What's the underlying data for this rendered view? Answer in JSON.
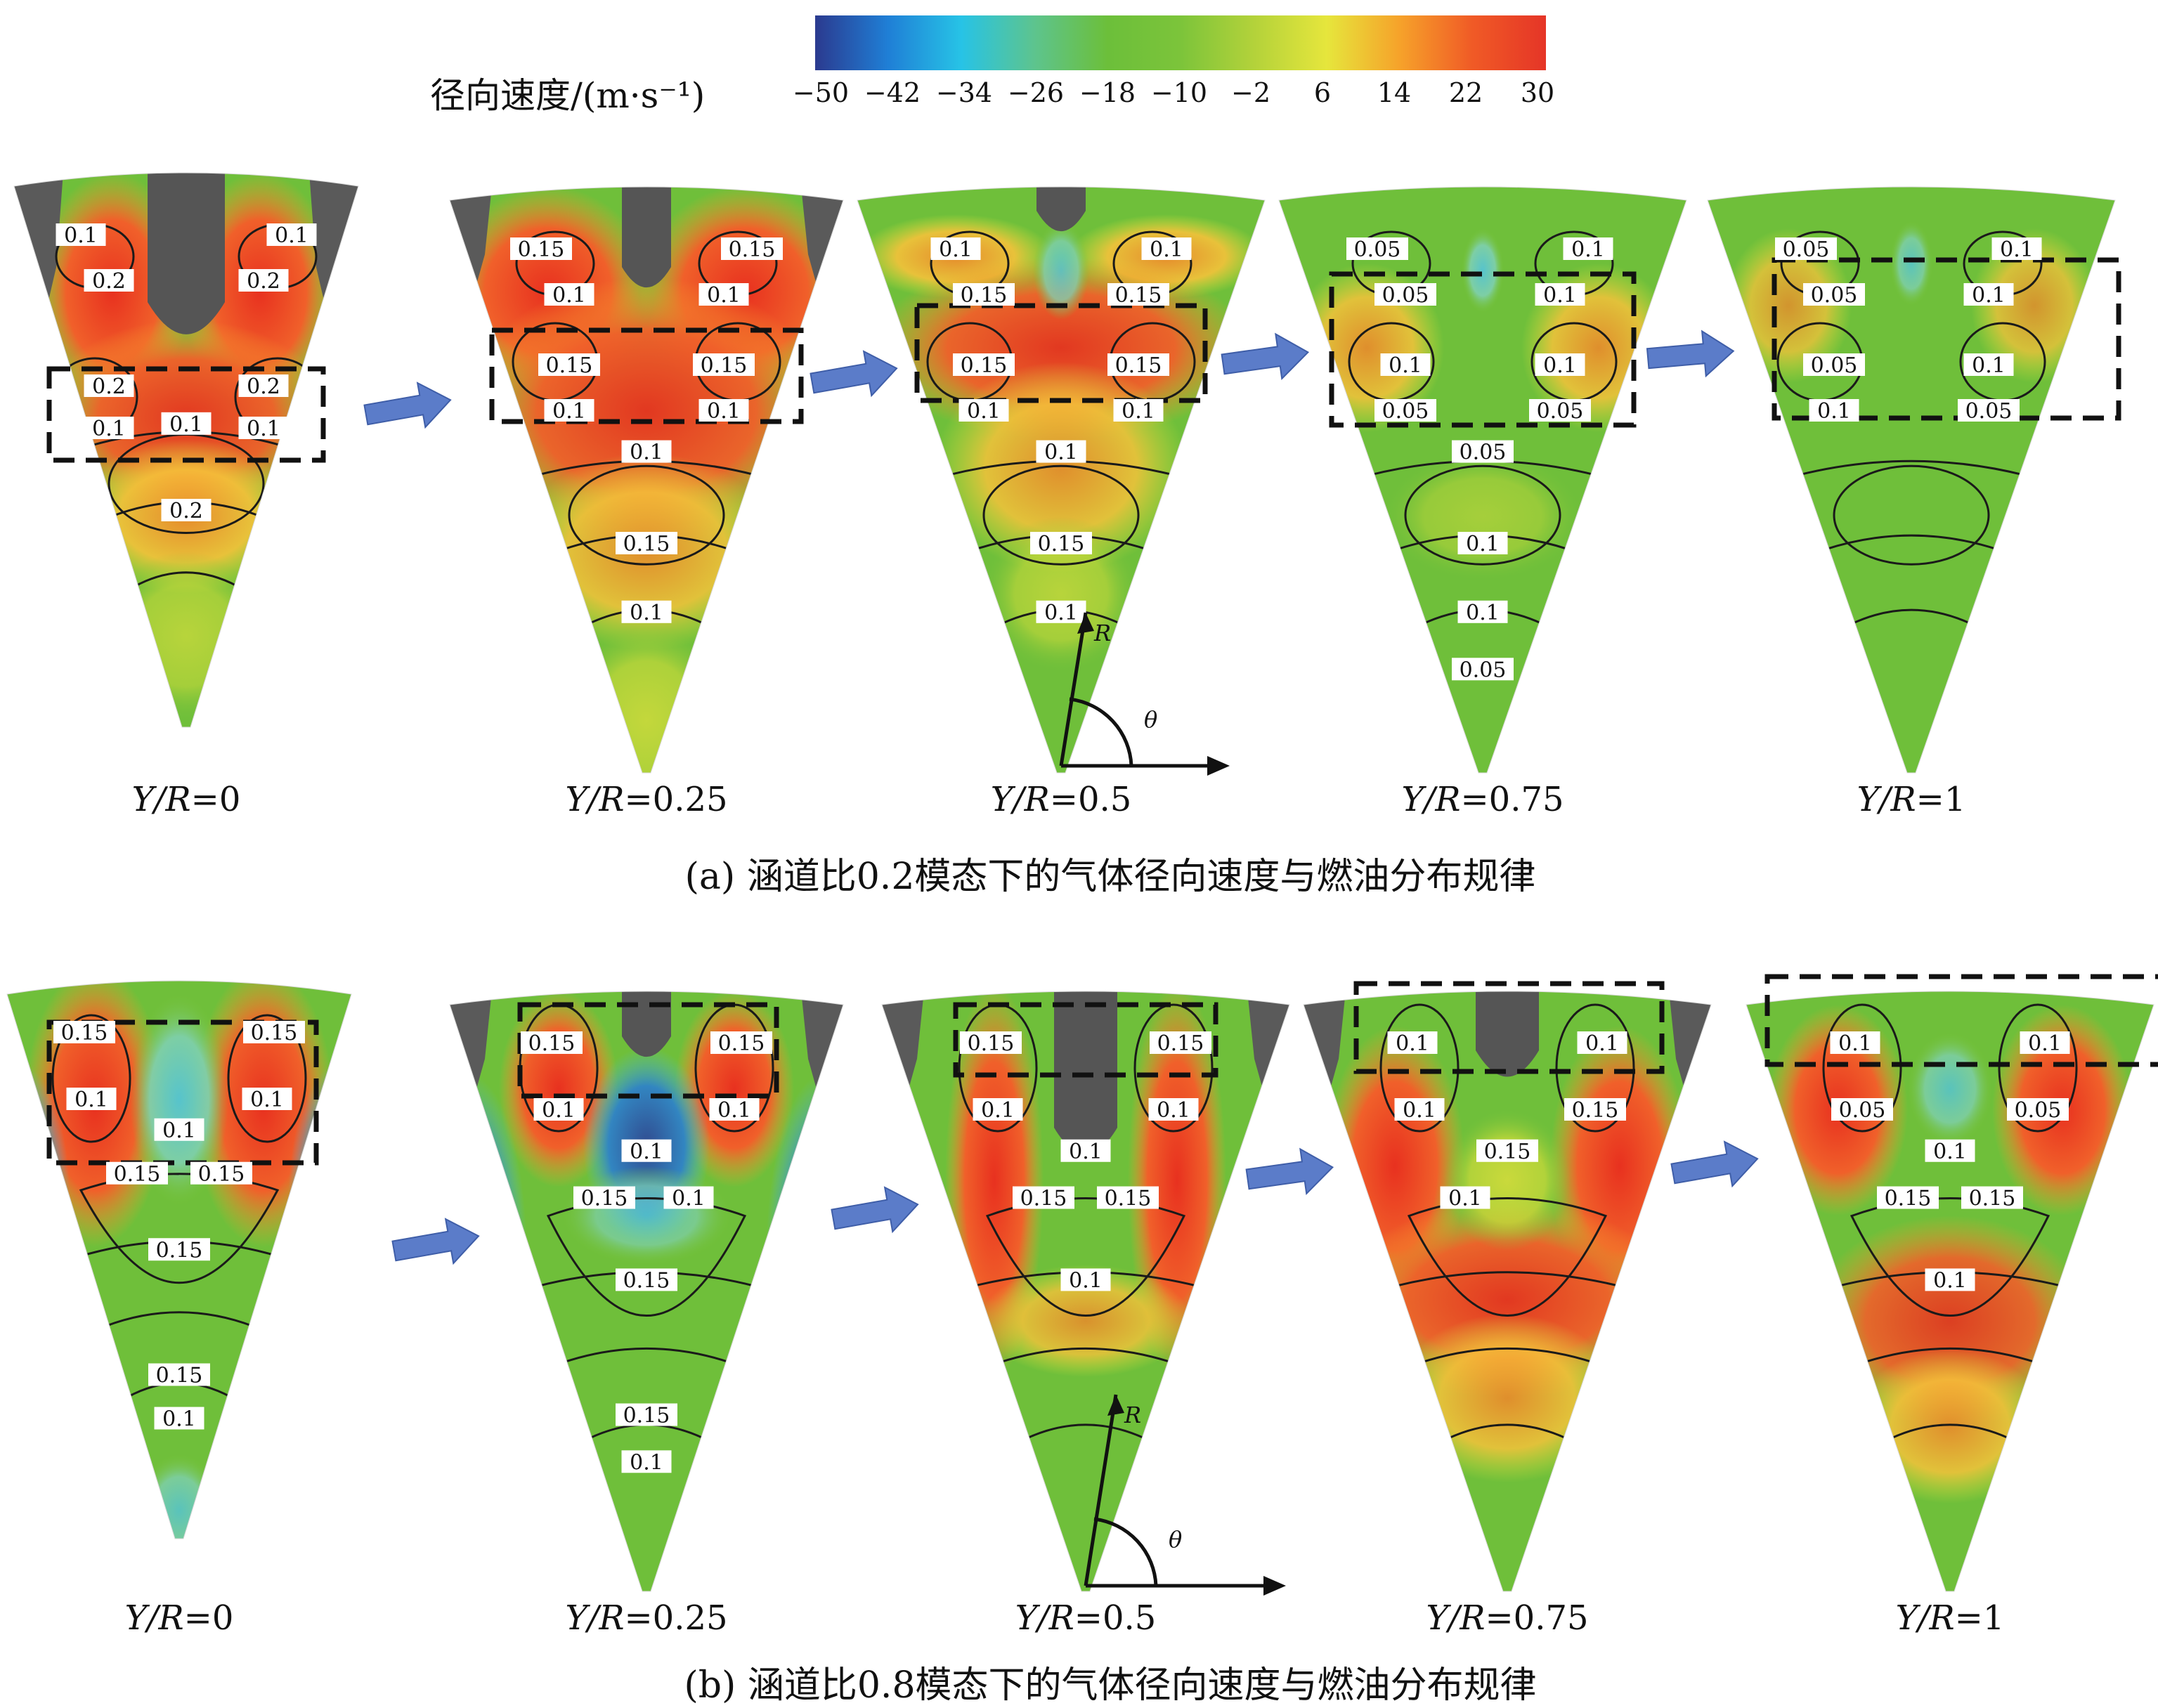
{
  "colorbar": {
    "title": "径向速度/(m·s⁻¹)",
    "ticks": [
      "−50",
      "−42",
      "−34",
      "−26",
      "−18",
      "−10",
      "−2",
      "6",
      "14",
      "22",
      "30"
    ],
    "colors": [
      "#2b3a8f",
      "#1f7fd6",
      "#27c3e6",
      "#5dc48e",
      "#6cbf3a",
      "#7cc43a",
      "#b3d23a",
      "#e6e63c",
      "#f6a22a",
      "#f05a26",
      "#e53527"
    ]
  },
  "rows": [
    {
      "caption": "(a) 涵道比0.2模态下的气体径向速度与燃油分布规律",
      "sectors": [
        {
          "label_var": "Y/R",
          "label_val": "=0",
          "contours": [
            "0.1",
            "0.2",
            "0.1",
            "0.2",
            "0.2",
            "0.2",
            "0.1",
            "0.1",
            "0.1",
            "0.2"
          ]
        },
        {
          "label_var": "Y/R",
          "label_val": "=0.25",
          "contours": [
            "0.15",
            "0.1",
            "0.15",
            "0.1",
            "0.15",
            "0.15",
            "0.1",
            "0.1",
            "0.1",
            "0.15",
            "0.1"
          ]
        },
        {
          "label_var": "Y/R",
          "label_val": "=0.5",
          "contours": [
            "0.1",
            "0.15",
            "0.1",
            "0.15",
            "0.15",
            "0.15",
            "0.1",
            "0.1",
            "0.1",
            "0.15",
            "0.1"
          ]
        },
        {
          "label_var": "Y/R",
          "label_val": "=0.75",
          "contours": [
            "0.05",
            "0.05",
            "0.1",
            "0.1",
            "0.1",
            "0.1",
            "0.05",
            "0.05",
            "0.05",
            "0.1",
            "0.1",
            "0.05"
          ]
        },
        {
          "label_var": "Y/R",
          "label_val": "=1",
          "contours": [
            "0.05",
            "0.05",
            "0.1",
            "0.1",
            "0.05",
            "0.1",
            "0.1",
            "0.05"
          ]
        }
      ]
    },
    {
      "caption": "(b) 涵道比0.8模态下的气体径向速度与燃油分布规律",
      "sectors": [
        {
          "label_var": "Y/R",
          "label_val": "=0",
          "contours": [
            "0.15",
            "0.15",
            "0.1",
            "0.1",
            "0.1",
            "0.15",
            "0.15",
            "0.15",
            "0.15",
            "0.1"
          ]
        },
        {
          "label_var": "Y/R",
          "label_val": "=0.25",
          "contours": [
            "0.15",
            "0.15",
            "0.1",
            "0.1",
            "0.1",
            "0.15",
            "0.1",
            "0.15",
            "0.15",
            "0.1"
          ]
        },
        {
          "label_var": "Y/R",
          "label_val": "=0.5",
          "contours": [
            "0.15",
            "0.15",
            "0.1",
            "0.1",
            "0.1",
            "0.15",
            "0.15",
            "0.1"
          ]
        },
        {
          "label_var": "Y/R",
          "label_val": "=0.75",
          "contours": [
            "0.1",
            "0.1",
            "0.1",
            "0.15",
            "0.15",
            "0.1"
          ]
        },
        {
          "label_var": "Y/R",
          "label_val": "=1",
          "contours": [
            "0.1",
            "0.1",
            "0.05",
            "0.05",
            "0.1",
            "0.15",
            "0.15",
            "0.1"
          ]
        }
      ]
    }
  ],
  "axes": {
    "r_label": "R",
    "theta_label": "θ"
  }
}
